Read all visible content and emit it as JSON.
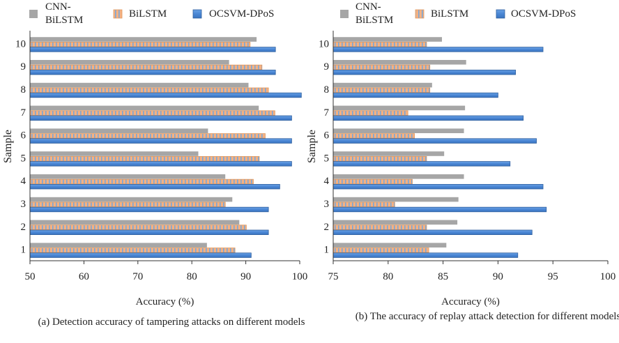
{
  "legend": {
    "cnn_label": "CNN-\nBiLSTM",
    "bilstm_label": "BiLSTM",
    "ocsvm_label": "OCSVM-DPoS"
  },
  "colors": {
    "cnn": "#a6a6a6",
    "bilstm_fill": "#f4b183",
    "bilstm_stripe": "#7aa7d8",
    "ocsvm": "#4a86d4",
    "ocsvm_edge": "#2f5f9e"
  },
  "captions": {
    "a": "(a) Detection accuracy of tampering attacks on different models",
    "b": "(b)  The accuracy of replay attack detection for different models"
  },
  "chart_data": [
    {
      "type": "bar",
      "orientation": "horizontal",
      "categories": [
        "1",
        "2",
        "3",
        "4",
        "5",
        "6",
        "7",
        "8",
        "9",
        "10"
      ],
      "series": [
        {
          "name": "CNN-BiLSTM",
          "values": [
            82.8,
            88.8,
            87.5,
            86.2,
            81.2,
            83.0,
            92.4,
            90.5,
            86.9,
            92.0
          ]
        },
        {
          "name": "BiLSTM",
          "values": [
            88.0,
            90.1,
            86.2,
            91.4,
            92.5,
            93.6,
            95.4,
            94.2,
            93.0,
            90.8
          ]
        },
        {
          "name": "OCSVM-DPoS",
          "values": [
            91.0,
            94.2,
            94.2,
            96.3,
            98.5,
            98.5,
            98.5,
            101.0,
            95.5,
            95.5
          ]
        }
      ],
      "xlabel": "Accuracy (%)",
      "ylabel": "Sample",
      "xlim": [
        50,
        100
      ],
      "xticks": [
        "50",
        "60",
        "70",
        "80",
        "90",
        "100"
      ],
      "grid": false,
      "legend_position": "top"
    },
    {
      "type": "bar",
      "orientation": "horizontal",
      "categories": [
        "1",
        "2",
        "3",
        "4",
        "5",
        "6",
        "7",
        "8",
        "9",
        "10"
      ],
      "series": [
        {
          "name": "CNN-BiLSTM",
          "values": [
            85.3,
            86.3,
            86.4,
            86.9,
            85.1,
            86.9,
            87.0,
            84.0,
            87.1,
            84.9
          ]
        },
        {
          "name": "BiLSTM",
          "values": [
            83.7,
            83.5,
            80.6,
            82.2,
            83.5,
            82.4,
            81.8,
            83.8,
            83.8,
            83.5
          ]
        },
        {
          "name": "OCSVM-DPoS",
          "values": [
            91.8,
            93.1,
            94.4,
            94.1,
            91.1,
            93.5,
            92.3,
            90.0,
            91.6,
            94.1
          ]
        }
      ],
      "xlabel": "Accuracy (%)",
      "ylabel": "Sample",
      "xlim": [
        75,
        100
      ],
      "xticks": [
        "75",
        "80",
        "85",
        "90",
        "95",
        "100"
      ],
      "grid": false,
      "legend_position": "top"
    }
  ]
}
